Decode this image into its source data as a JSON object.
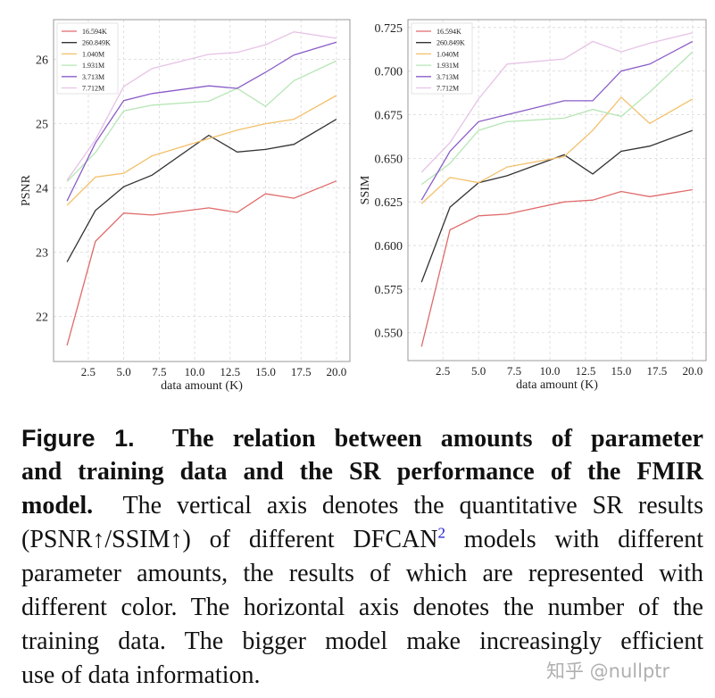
{
  "chart_data": [
    {
      "type": "line",
      "ylabel": "PSNR",
      "xlabel": "data amount (K)",
      "x": [
        1,
        3,
        5,
        7,
        11,
        13,
        15,
        17,
        20
      ],
      "xlim": [
        0.05,
        20.95
      ],
      "ylim": [
        21.3,
        26.62
      ],
      "xticks": [
        2.5,
        5.0,
        7.5,
        10.0,
        12.5,
        15.0,
        17.5,
        20.0
      ],
      "xtick_labels": [
        "2.5",
        "5.0",
        "7.5",
        "10.0",
        "12.5",
        "15.0",
        "17.5",
        "20.0"
      ],
      "yticks": [
        22,
        23,
        24,
        25,
        26
      ],
      "ytick_labels": [
        "22",
        "23",
        "24",
        "25",
        "26"
      ],
      "grid": true,
      "legend": "top-left",
      "series": [
        {
          "name": "16.594K",
          "color": "#e06a6a",
          "values": [
            21.55,
            23.17,
            23.61,
            23.58,
            23.69,
            23.62,
            23.91,
            23.84,
            24.11
          ]
        },
        {
          "name": "260.849K",
          "color": "#333333",
          "values": [
            22.85,
            23.65,
            24.02,
            24.2,
            24.82,
            24.56,
            24.6,
            24.68,
            25.07
          ]
        },
        {
          "name": "1.040M",
          "color": "#f3c06a",
          "values": [
            23.73,
            24.17,
            24.23,
            24.5,
            24.77,
            24.9,
            25.0,
            25.07,
            25.44
          ]
        },
        {
          "name": "1.931M",
          "color": "#b5e6b5",
          "values": [
            24.1,
            24.55,
            25.2,
            25.29,
            25.35,
            25.55,
            25.27,
            25.67,
            25.98
          ]
        },
        {
          "name": "3.713M",
          "color": "#8a5cc8",
          "values": [
            23.8,
            24.7,
            25.36,
            25.47,
            25.59,
            25.55,
            25.8,
            26.07,
            26.27
          ]
        },
        {
          "name": "7.712M",
          "color": "#e6c3e6",
          "values": [
            24.12,
            24.75,
            25.58,
            25.86,
            26.08,
            26.11,
            26.23,
            26.43,
            26.33
          ]
        }
      ]
    },
    {
      "type": "line",
      "ylabel": "SSIM",
      "xlabel": "data amount (K)",
      "x": [
        1,
        3,
        5,
        7,
        11,
        13,
        15,
        17,
        20
      ],
      "xlim": [
        0.05,
        20.95
      ],
      "ylim": [
        0.534,
        0.7295
      ],
      "xticks": [
        2.5,
        5.0,
        7.5,
        10.0,
        12.5,
        15.0,
        17.5,
        20.0
      ],
      "xtick_labels": [
        "2.5",
        "5.0",
        "7.5",
        "10.0",
        "12.5",
        "15.0",
        "17.5",
        "20.0"
      ],
      "yticks": [
        0.55,
        0.575,
        0.6,
        0.625,
        0.65,
        0.675,
        0.7,
        0.725
      ],
      "ytick_labels": [
        "0.550",
        "0.575",
        "0.600",
        "0.625",
        "0.650",
        "0.675",
        "0.700",
        "0.725"
      ],
      "grid": true,
      "legend": "top-left",
      "series": [
        {
          "name": "16.594K",
          "color": "#e06a6a",
          "values": [
            0.542,
            0.609,
            0.617,
            0.618,
            0.625,
            0.626,
            0.631,
            0.628,
            0.632
          ]
        },
        {
          "name": "260.849K",
          "color": "#333333",
          "values": [
            0.579,
            0.622,
            0.636,
            0.64,
            0.652,
            0.641,
            0.654,
            0.657,
            0.666
          ]
        },
        {
          "name": "1.040M",
          "color": "#f3c06a",
          "values": [
            0.624,
            0.639,
            0.636,
            0.645,
            0.651,
            0.666,
            0.685,
            0.67,
            0.684
          ]
        },
        {
          "name": "1.931M",
          "color": "#b5e6b5",
          "values": [
            0.635,
            0.647,
            0.666,
            0.671,
            0.673,
            0.678,
            0.674,
            0.688,
            0.711
          ]
        },
        {
          "name": "3.713M",
          "color": "#8a5cc8",
          "values": [
            0.626,
            0.654,
            0.671,
            0.675,
            0.683,
            0.683,
            0.7,
            0.704,
            0.717
          ]
        },
        {
          "name": "7.712M",
          "color": "#e6c3e6",
          "values": [
            0.642,
            0.659,
            0.684,
            0.704,
            0.707,
            0.717,
            0.711,
            0.716,
            0.722
          ]
        }
      ]
    }
  ],
  "caption": {
    "figure_label": "Figure 1.",
    "title_line1": "The relation between amounts of parameter",
    "title_line2": "and training data and the SR performance of the FMIR",
    "title_line3": "model.",
    "body_line3": "The vertical axis denotes the quantitative SR results",
    "body_line4a": "(PSNR↑/SSIM↑) of different DFCAN",
    "footnote_ref": "2",
    "body_line4b": " models with different",
    "body_line5": "parameter amounts, the results of which are represented with",
    "body_line6": "different color. The horizontal axis denotes the number of the",
    "body_line7": "training data. The bigger model make increasingly efficient",
    "body_line8": "use of data information."
  },
  "watermark": "知乎 @nullptr"
}
